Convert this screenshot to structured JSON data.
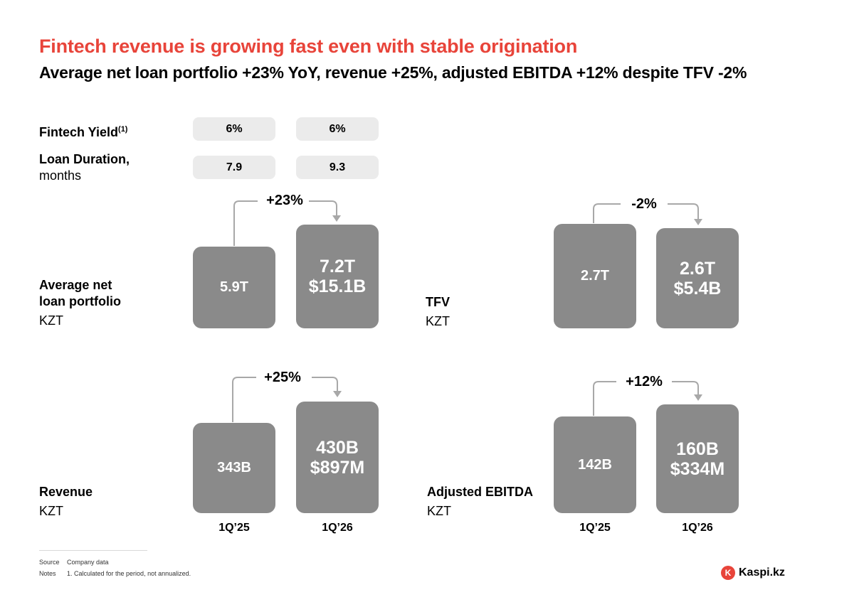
{
  "header": {
    "title": "Fintech revenue is growing fast even with stable origination",
    "subtitle": "Average net loan portfolio +23% YoY, revenue +25%, adjusted EBITDA +12% despite TFV -2%"
  },
  "kpi_rows": [
    {
      "label": "Fintech Yield",
      "superscript": "(1)",
      "label_line2": "",
      "values": [
        "6%",
        "6%"
      ]
    },
    {
      "label": "Loan Duration,",
      "superscript": "",
      "label_line2": "months",
      "values": [
        "7.9",
        "9.3"
      ]
    }
  ],
  "chart_data": [
    {
      "type": "bar",
      "name_line1": "Average net",
      "name_line2": "loan portfolio",
      "unit": "KZT",
      "categories": [
        "1Q'25",
        "1Q'26"
      ],
      "values": [
        5.9,
        7.2
      ],
      "value_unit": "trillion KZT",
      "data_labels": [
        "5.9T",
        "7.2T"
      ],
      "usd_label": "$15.1B",
      "growth": "+23%"
    },
    {
      "type": "bar",
      "name_line1": "TFV",
      "name_line2": "",
      "unit": "KZT",
      "categories": [
        "1Q'25",
        "1Q'26"
      ],
      "values": [
        2.7,
        2.6
      ],
      "value_unit": "trillion KZT",
      "data_labels": [
        "2.7T",
        "2.6T"
      ],
      "usd_label": "$5.4B",
      "growth": "-2%"
    },
    {
      "type": "bar",
      "name_line1": "Revenue",
      "name_line2": "",
      "unit": "KZT",
      "categories": [
        "1Q'25",
        "1Q'26"
      ],
      "values": [
        343,
        430
      ],
      "value_unit": "billion KZT",
      "data_labels": [
        "343B",
        "430B"
      ],
      "usd_label": "$897M",
      "growth": "+25%"
    },
    {
      "type": "bar",
      "name_line1": "Adjusted EBITDA",
      "name_line2": "",
      "unit": "KZT",
      "categories": [
        "1Q'25",
        "1Q'26"
      ],
      "values": [
        142,
        160
      ],
      "value_unit": "billion KZT",
      "data_labels": [
        "142B",
        "160B"
      ],
      "usd_label": "$334M",
      "growth": "+12%"
    }
  ],
  "x_axis_labels": [
    "1Q’25",
    "1Q’26"
  ],
  "footer": {
    "source_label": "Source",
    "source_text": "Company data",
    "notes_label": "Notes",
    "notes_text": "1. Calculated for the period, not annualized.",
    "logo_text": "Kaspi.kz"
  },
  "colors": {
    "accent": "#e8443a",
    "bar": "#8a8a8a",
    "pill": "#ebebeb",
    "connector": "#a8a8a8"
  }
}
